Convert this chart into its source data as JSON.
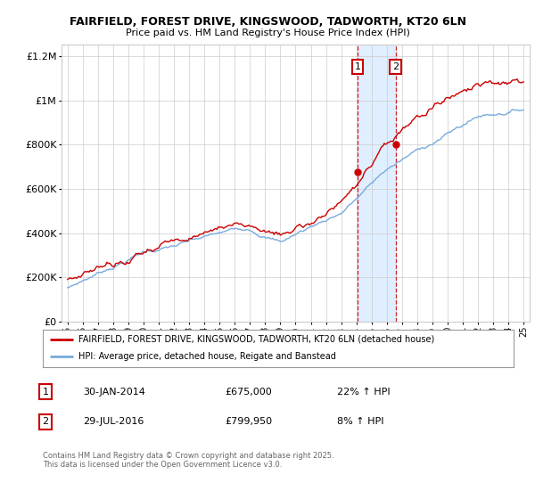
{
  "title": "FAIRFIELD, FOREST DRIVE, KINGSWOOD, TADWORTH, KT20 6LN",
  "subtitle": "Price paid vs. HM Land Registry's House Price Index (HPI)",
  "legend_line1": "FAIRFIELD, FOREST DRIVE, KINGSWOOD, TADWORTH, KT20 6LN (detached house)",
  "legend_line2": "HPI: Average price, detached house, Reigate and Banstead",
  "transaction1_date": "30-JAN-2014",
  "transaction1_price": "£675,000",
  "transaction1_hpi": "22% ↑ HPI",
  "transaction2_date": "29-JUL-2016",
  "transaction2_price": "£799,950",
  "transaction2_hpi": "8% ↑ HPI",
  "footer": "Contains HM Land Registry data © Crown copyright and database right 2025.\nThis data is licensed under the Open Government Licence v3.0.",
  "price_color": "#cc0000",
  "hpi_color": "#7aaadd",
  "highlight_color": "#ddeeff",
  "background_color": "#ffffff",
  "grid_color": "#cccccc",
  "ylim": [
    0,
    1250000
  ],
  "yticks": [
    0,
    200000,
    400000,
    600000,
    800000,
    1000000,
    1200000
  ],
  "ytick_labels": [
    "£0",
    "£200K",
    "£400K",
    "£600K",
    "£800K",
    "£1M",
    "£1.2M"
  ],
  "x_start_year": 1995,
  "x_end_year": 2025,
  "transaction1_year": 2014.08,
  "transaction2_year": 2016.58,
  "t1_price": 675000,
  "t2_price": 799950
}
